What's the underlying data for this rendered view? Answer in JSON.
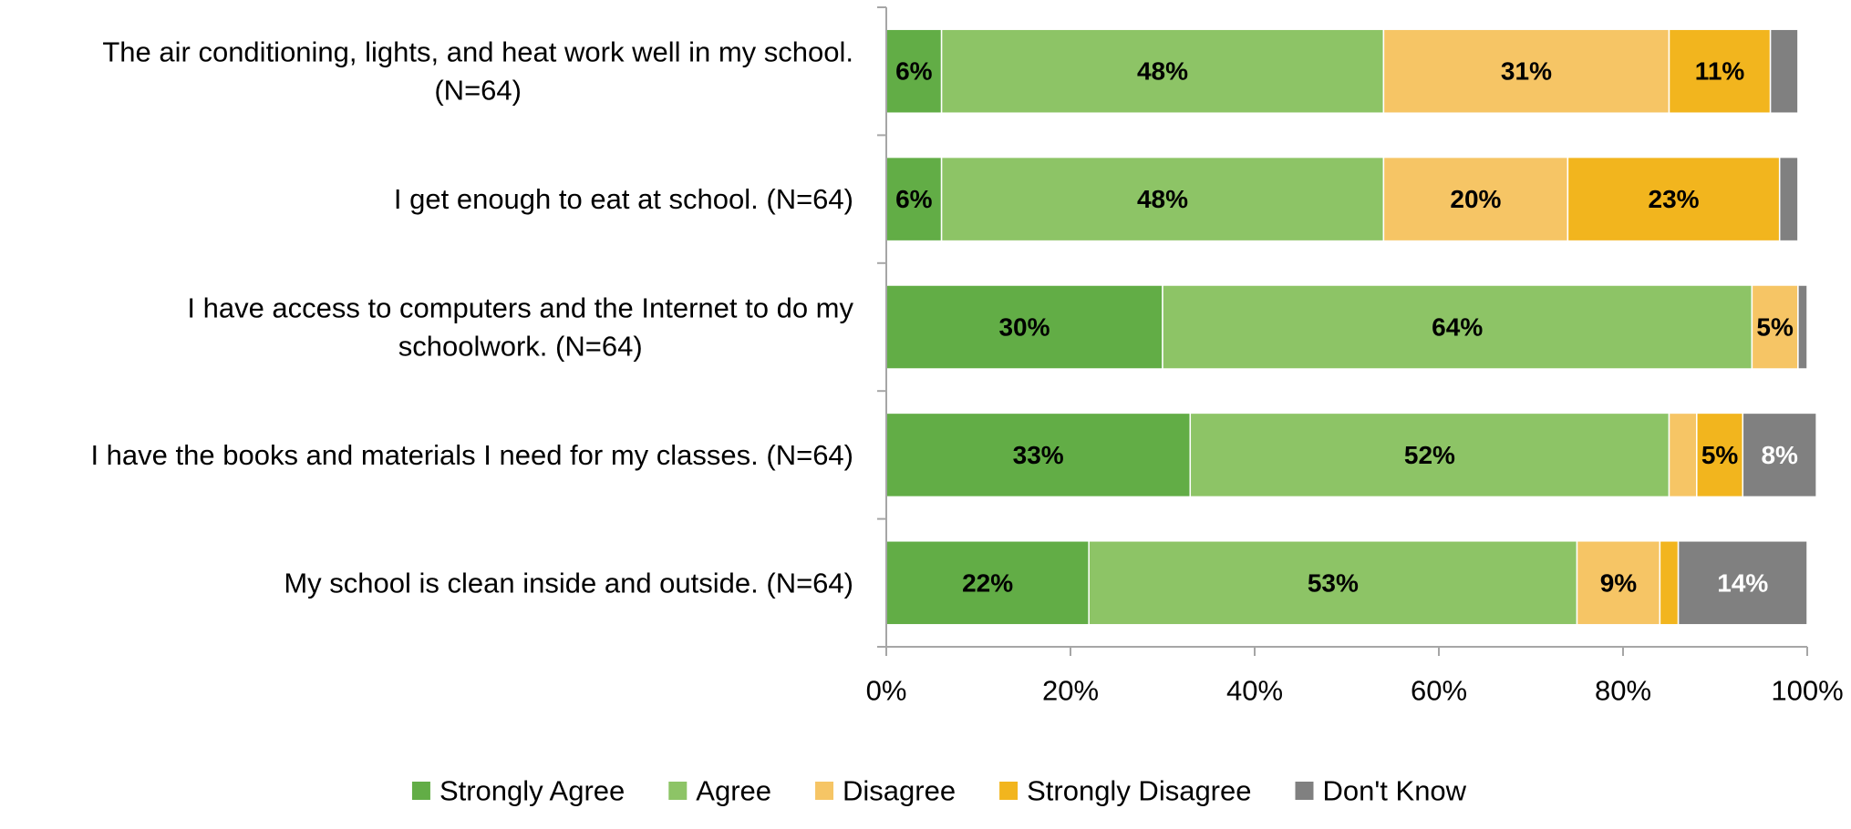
{
  "chart_data": {
    "type": "bar",
    "orientation": "horizontal",
    "stacked": true,
    "categories": [
      [
        "The air conditioning, lights, and heat work well in my school.",
        "(N=64)"
      ],
      [
        "I get enough to eat at school. (N=64)"
      ],
      [
        "I have access to computers and the Internet to do my",
        "schoolwork. (N=64)"
      ],
      [
        "I have the books and materials I need for my classes. (N=64)"
      ],
      [
        "My school is clean inside and outside. (N=64)"
      ]
    ],
    "series": [
      {
        "name": "Strongly Agree",
        "color": "#62ad46",
        "label_color": "#000000",
        "values": [
          6,
          6,
          30,
          33,
          22
        ],
        "labels": [
          "6%",
          "6%",
          "30%",
          "33%",
          "22%"
        ]
      },
      {
        "name": "Agree",
        "color": "#8dc466",
        "label_color": "#000000",
        "values": [
          48,
          48,
          64,
          52,
          53
        ],
        "labels": [
          "48%",
          "48%",
          "64%",
          "52%",
          "53%"
        ]
      },
      {
        "name": "Disagree",
        "color": "#f6c565",
        "label_color": "#000000",
        "values": [
          31,
          20,
          5,
          3,
          9
        ],
        "labels": [
          "31%",
          "20%",
          "5%",
          "",
          "9%"
        ]
      },
      {
        "name": "Strongly Disagree",
        "color": "#f2b51e",
        "label_color": "#000000",
        "values": [
          11,
          23,
          0,
          5,
          2
        ],
        "labels": [
          "11%",
          "23%",
          "",
          "5%",
          ""
        ]
      },
      {
        "name": "Don't Know",
        "color": "#808080",
        "label_color": "#ffffff",
        "values": [
          3,
          2,
          1,
          8,
          14
        ],
        "labels": [
          "",
          "",
          "",
          "8%",
          "14%"
        ]
      }
    ],
    "xlim": [
      0,
      100
    ],
    "xticks": [
      "0%",
      "20%",
      "40%",
      "60%",
      "80%",
      "100%"
    ],
    "legend_position": "bottom",
    "grid": false,
    "axis_color": "#a6a6a6"
  }
}
